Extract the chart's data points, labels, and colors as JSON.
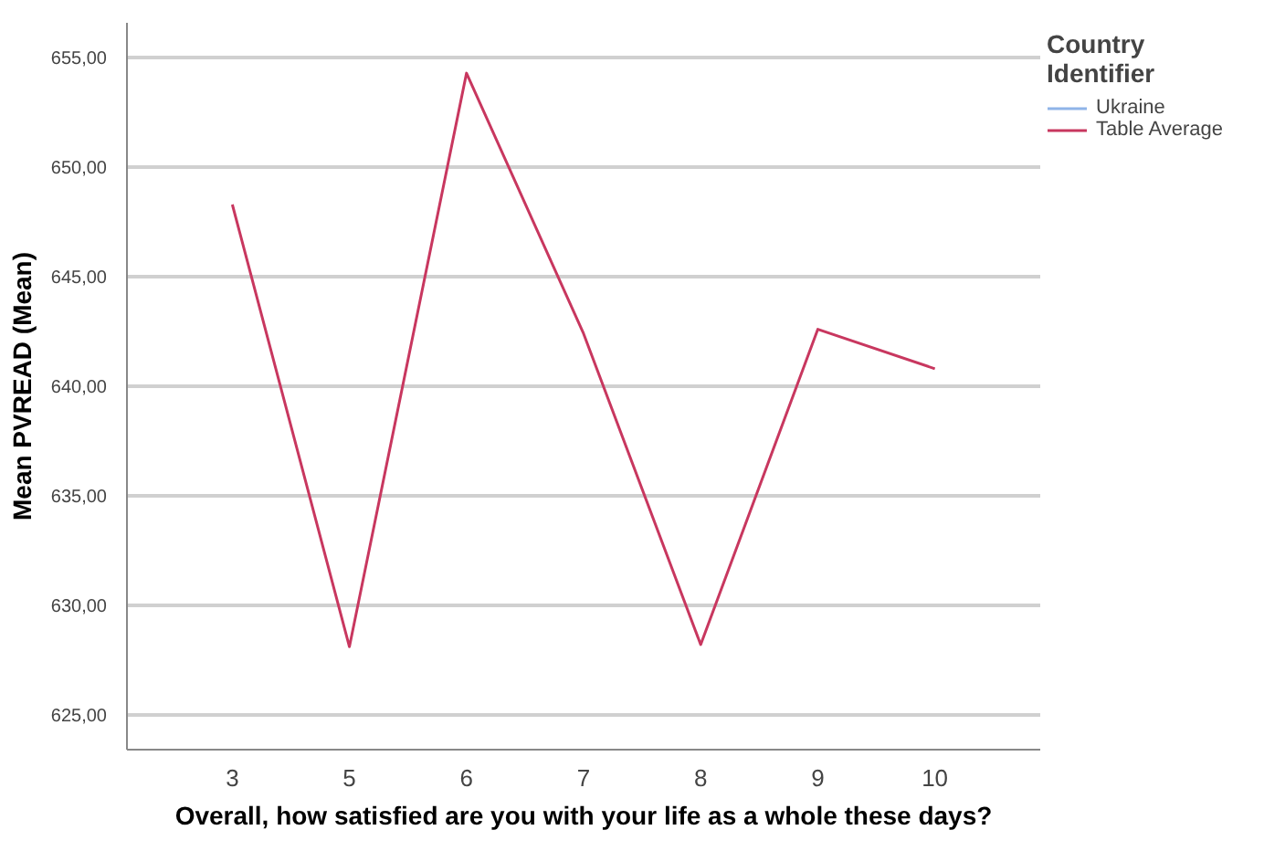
{
  "chart_data": {
    "type": "line",
    "xlabel": "Overall, how satisfied are you with your life as a whole these days?",
    "ylabel": "Mean PVREAD (Mean)",
    "legend_title": "Country Identifier",
    "categories": [
      "3",
      "5",
      "6",
      "7",
      "8",
      "9",
      "10"
    ],
    "series": [
      {
        "name": "Ukraine",
        "color": "#8fb4e8",
        "values": [
          null,
          null,
          null,
          null,
          null,
          null,
          null
        ]
      },
      {
        "name": "Table Average",
        "color": "#c8375f",
        "values": [
          648.3,
          628.1,
          654.3,
          642.4,
          628.2,
          642.6,
          640.8
        ]
      }
    ],
    "ylim": [
      623.4,
      656.6
    ],
    "yticks": [
      {
        "value": 625,
        "label": "625,00"
      },
      {
        "value": 630,
        "label": "630,00"
      },
      {
        "value": 635,
        "label": "635,00"
      },
      {
        "value": 640,
        "label": "640,00"
      },
      {
        "value": 645,
        "label": "645,00"
      },
      {
        "value": 650,
        "label": "650,00"
      },
      {
        "value": 655,
        "label": "655,00"
      }
    ],
    "grid": "y",
    "legend": "top right",
    "line_style": "solid",
    "marker": "none"
  }
}
